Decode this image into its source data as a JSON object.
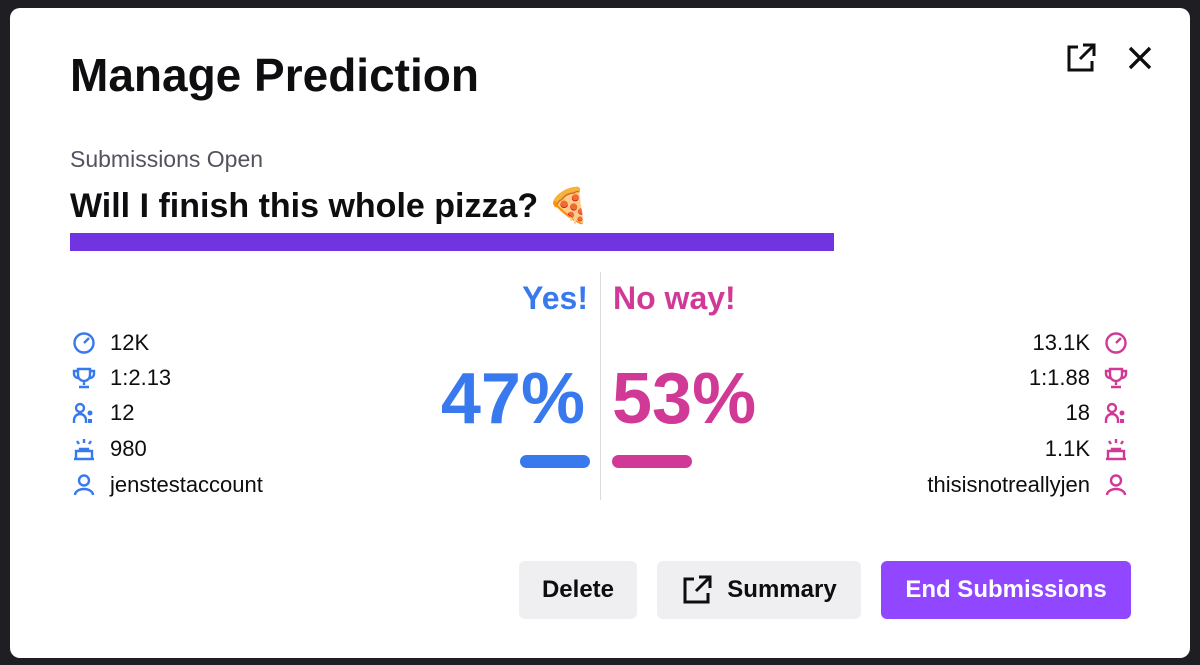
{
  "header": {
    "title": "Manage Prediction"
  },
  "status": "Submissions Open",
  "question": "Will I finish this whole pizza? 🍕",
  "progress_color": "#7034e0",
  "outcomes": [
    {
      "name": "Yes!",
      "percent": "47%",
      "color": "#387aee",
      "stats": {
        "points": "12K",
        "ratio": "1:2.13",
        "users": "12",
        "top_points": "980",
        "top_user": "jenstestaccount"
      }
    },
    {
      "name": "No way!",
      "percent": "53%",
      "color": "#d03a96",
      "stats": {
        "points": "13.1K",
        "ratio": "1:1.88",
        "users": "18",
        "top_points": "1.1K",
        "top_user": "thisisnotreallyjen"
      }
    }
  ],
  "buttons": {
    "delete": "Delete",
    "summary": "Summary",
    "end": "End Submissions"
  }
}
